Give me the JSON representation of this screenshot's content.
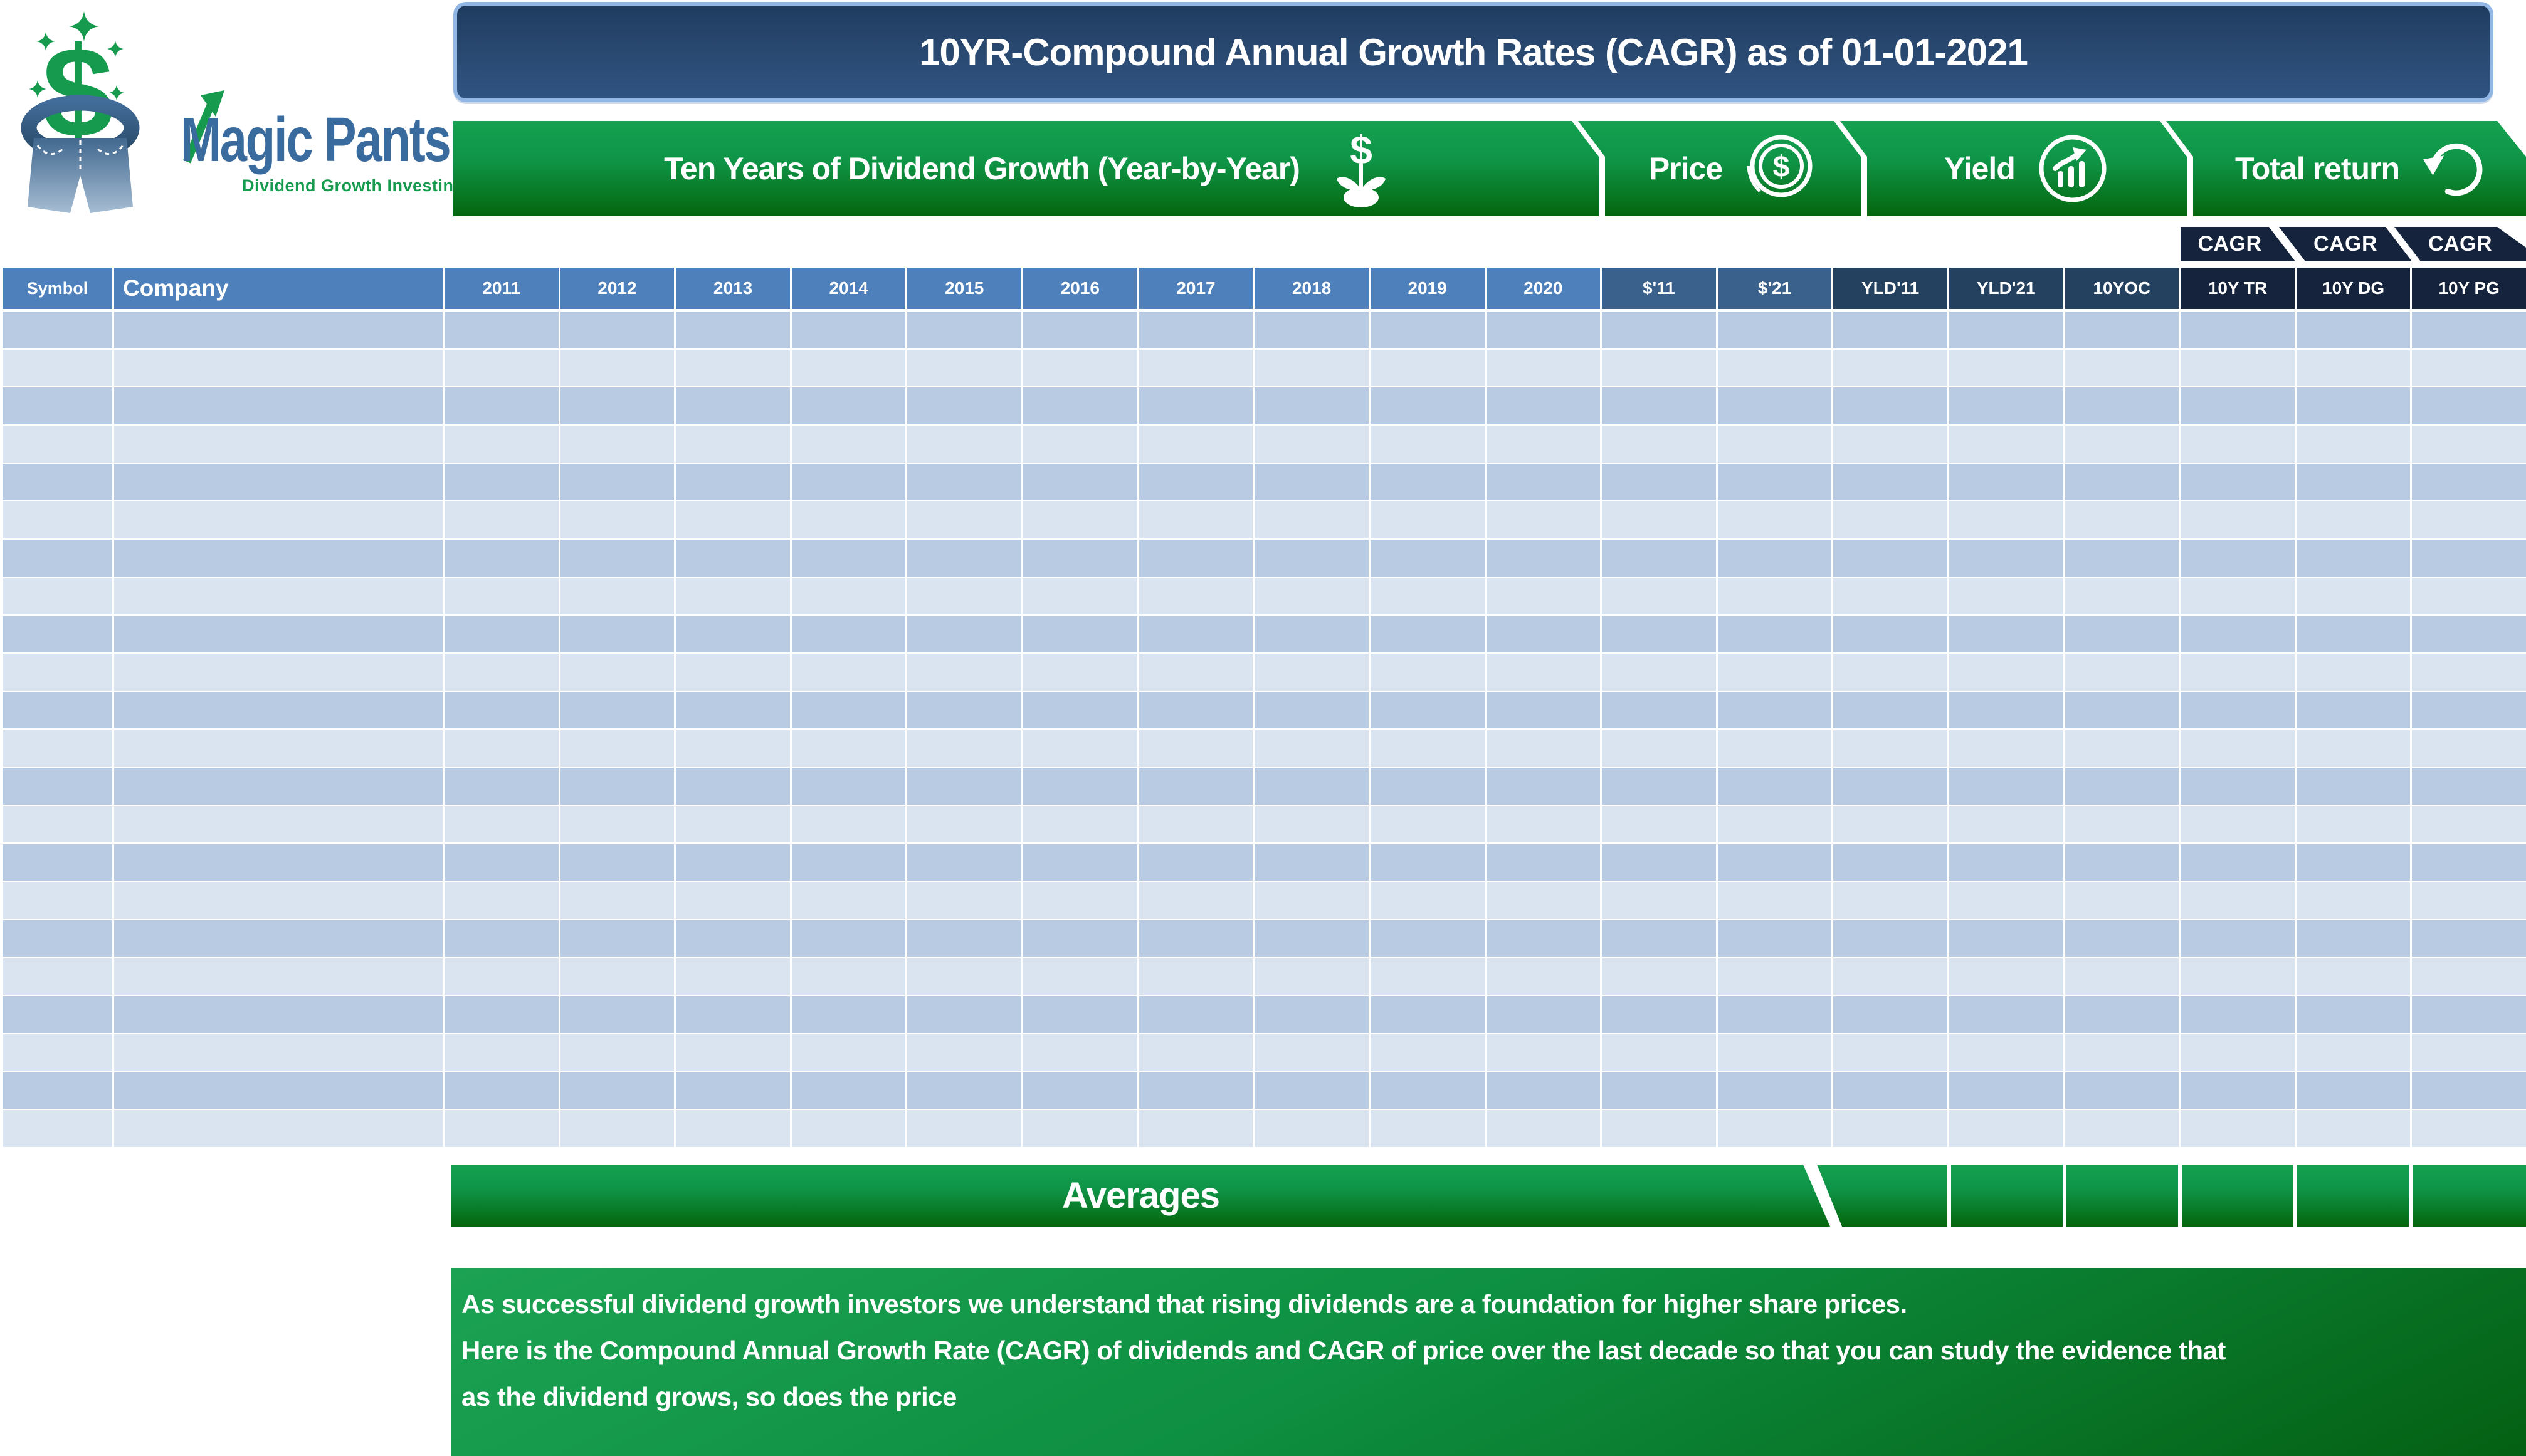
{
  "logo": {
    "brand": "Magic Pants",
    "tagline": "Dividend Growth Investing"
  },
  "title_banner": {
    "text": "10YR-Compound Annual Growth Rates (CAGR) as of 01-01-2021"
  },
  "banners": [
    {
      "label": "Ten Years of Dividend Growth (Year-by-Year)",
      "icon": "dollar-plant-icon"
    },
    {
      "label": "Price",
      "icon": "dollar-coin-icon"
    },
    {
      "label": "Yield",
      "icon": "yield-chart-icon"
    },
    {
      "label": "Total return",
      "icon": "return-arrow-icon"
    }
  ],
  "cagr_tabs": [
    {
      "label": "CAGR"
    },
    {
      "label": "CAGR"
    },
    {
      "label": "CAGR"
    }
  ],
  "table": {
    "headers": [
      {
        "label": "Symbol",
        "group": "base"
      },
      {
        "label": "Company",
        "group": "base",
        "align": "left"
      },
      {
        "label": "2011",
        "group": "base"
      },
      {
        "label": "2012",
        "group": "base"
      },
      {
        "label": "2013",
        "group": "base"
      },
      {
        "label": "2014",
        "group": "base"
      },
      {
        "label": "2015",
        "group": "base"
      },
      {
        "label": "2016",
        "group": "base"
      },
      {
        "label": "2017",
        "group": "base"
      },
      {
        "label": "2018",
        "group": "base"
      },
      {
        "label": "2019",
        "group": "base"
      },
      {
        "label": "2020",
        "group": "base"
      },
      {
        "label": "$'11",
        "group": "price"
      },
      {
        "label": "$'21",
        "group": "price"
      },
      {
        "label": "YLD'11",
        "group": "yield"
      },
      {
        "label": "YLD'21",
        "group": "yield"
      },
      {
        "label": "10YOC",
        "group": "yield"
      },
      {
        "label": "10Y TR",
        "group": "cagr"
      },
      {
        "label": "10Y DG",
        "group": "cagr"
      },
      {
        "label": "10Y PG",
        "group": "cagr"
      }
    ],
    "row_count": 22,
    "rows_empty": true
  },
  "averages": {
    "label": "Averages",
    "cell_count": 6
  },
  "footer": {
    "lines": [
      "As successful dividend growth investors we understand that rising dividends are a foundation for higher share prices.",
      "Here is the Compound Annual Growth Rate (CAGR) of dividends and CAGR of price over the last decade so that you can study the evidence that",
      "as the dividend grows, so does the price"
    ]
  },
  "colors": {
    "banner_green_top": "#14A150",
    "banner_green_bottom": "#04660D",
    "title_blue_top": "#1F3B60",
    "title_blue_bottom": "#2F5381",
    "title_border": "#93B7E4",
    "header_blue": "#4E80BC",
    "header_price_blue": "#3A618C",
    "header_yield_navy": "#24415F",
    "header_cagr_navy": "#15243C",
    "row_dark": "#B9CBE2",
    "row_light": "#DAE4F0",
    "logo_blue": "#3A6B9E",
    "logo_green": "#169B4E"
  }
}
